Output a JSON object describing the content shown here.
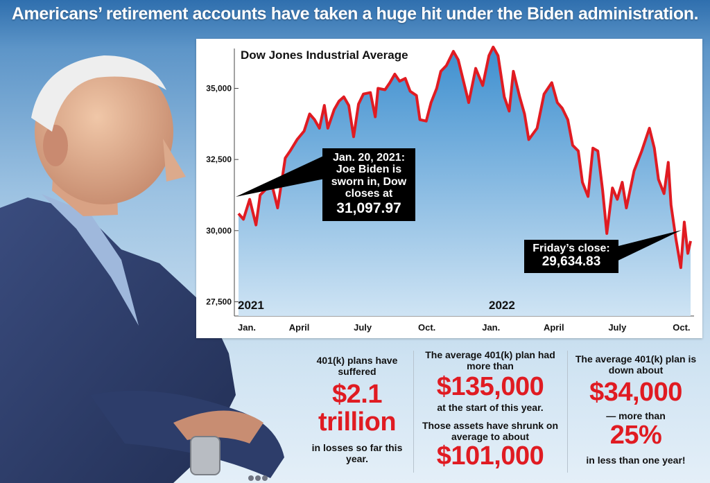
{
  "headline": "Americans’ retirement accounts have taken a huge hit under the Biden administration.",
  "chart_data": {
    "type": "area",
    "title": "Dow Jones Industrial Average",
    "ylim": [
      27000,
      36400
    ],
    "y_ticks": [
      35000,
      32500,
      30000,
      27500
    ],
    "y_tick_labels": [
      "35,000",
      "32,500",
      "30,000",
      "27,500"
    ],
    "x_tick_labels": [
      "Jan.",
      "April",
      "July",
      "Oct.",
      "Jan.",
      "April",
      "July",
      "Oct."
    ],
    "year_labels": [
      "2021",
      "2022"
    ],
    "grid": false,
    "series": [
      {
        "color": "#e01b22",
        "x": [
          "2021-01-04",
          "2021-01-11",
          "2021-01-20",
          "2021-01-29",
          "2021-02-04",
          "2021-02-12",
          "2021-02-22",
          "2021-03-01",
          "2021-03-08",
          "2021-03-12",
          "2021-03-19",
          "2021-03-29",
          "2021-04-08",
          "2021-04-16",
          "2021-04-23",
          "2021-04-30",
          "2021-05-07",
          "2021-05-12",
          "2021-05-21",
          "2021-05-28",
          "2021-06-04",
          "2021-06-11",
          "2021-06-18",
          "2021-06-25",
          "2021-07-02",
          "2021-07-12",
          "2021-07-19",
          "2021-07-23",
          "2021-08-02",
          "2021-08-09",
          "2021-08-16",
          "2021-08-23",
          "2021-08-31",
          "2021-09-07",
          "2021-09-16",
          "2021-09-21",
          "2021-09-30",
          "2021-10-07",
          "2021-10-15",
          "2021-10-21",
          "2021-10-29",
          "2021-11-08",
          "2021-11-15",
          "2021-11-26",
          "2021-11-30",
          "2021-12-10",
          "2021-12-20",
          "2021-12-29",
          "2022-01-04",
          "2022-01-11",
          "2022-01-20",
          "2022-01-27",
          "2022-02-02",
          "2022-02-11",
          "2022-02-18",
          "2022-02-24",
          "2022-03-08",
          "2022-03-18",
          "2022-03-29",
          "2022-04-06",
          "2022-04-13",
          "2022-04-21",
          "2022-04-28",
          "2022-05-06",
          "2022-05-12",
          "2022-05-20",
          "2022-05-27",
          "2022-06-03",
          "2022-06-10",
          "2022-06-16",
          "2022-06-24",
          "2022-07-01",
          "2022-07-08",
          "2022-07-14",
          "2022-07-25",
          "2022-08-05",
          "2022-08-16",
          "2022-08-23",
          "2022-08-29",
          "2022-09-06",
          "2022-09-12",
          "2022-09-16",
          "2022-09-23",
          "2022-09-30",
          "2022-10-05",
          "2022-10-10",
          "2022-10-14"
        ],
        "values": [
          30600,
          30400,
          31098,
          30200,
          31250,
          31450,
          31500,
          30800,
          31900,
          32550,
          32800,
          33200,
          33500,
          34100,
          33900,
          33600,
          34400,
          33600,
          34250,
          34550,
          34700,
          34400,
          33300,
          34450,
          34800,
          34850,
          34000,
          35000,
          34950,
          35200,
          35500,
          35250,
          35350,
          34900,
          34750,
          33900,
          33850,
          34500,
          35000,
          35600,
          35800,
          36300,
          36000,
          34900,
          34500,
          35700,
          35100,
          36150,
          36450,
          36150,
          34700,
          34200,
          35600,
          34700,
          34100,
          33200,
          33600,
          34800,
          35200,
          34500,
          34300,
          33900,
          33000,
          32800,
          31700,
          31200,
          32900,
          32800,
          31400,
          29900,
          31500,
          31100,
          31700,
          30800,
          32100,
          32800,
          33600,
          32900,
          31800,
          31300,
          32400,
          30900,
          29700,
          28700,
          30300,
          29200,
          29634.83
        ]
      }
    ],
    "annotations": [
      {
        "lines": [
          "Jan. 20, 2021:",
          "Joe Biden is",
          "sworn in, Dow",
          "closes at"
        ],
        "value": "31,097.97"
      },
      {
        "lines": [
          "Friday’s close:"
        ],
        "value": "29,634.83"
      }
    ]
  },
  "stats": [
    {
      "top": "401(k) plans have suffered",
      "big1": "$2.1",
      "big2": "trillion",
      "bottom": "in losses so far this year."
    },
    {
      "top": "The average 401(k) plan had more than",
      "big1": "$135,000",
      "mid": "at the start of this year.",
      "mid2": "Those assets have shrunk on average to about",
      "big2": "$101,000"
    },
    {
      "top": "The average 401(k) plan is down about",
      "big1": "$34,000",
      "mid": "— more than",
      "big2": "25%",
      "bottom": "in less than one year!"
    }
  ],
  "colors": {
    "accent_red": "#e01b22",
    "suit": "#2c3b66",
    "sky": "#5d95c8"
  }
}
